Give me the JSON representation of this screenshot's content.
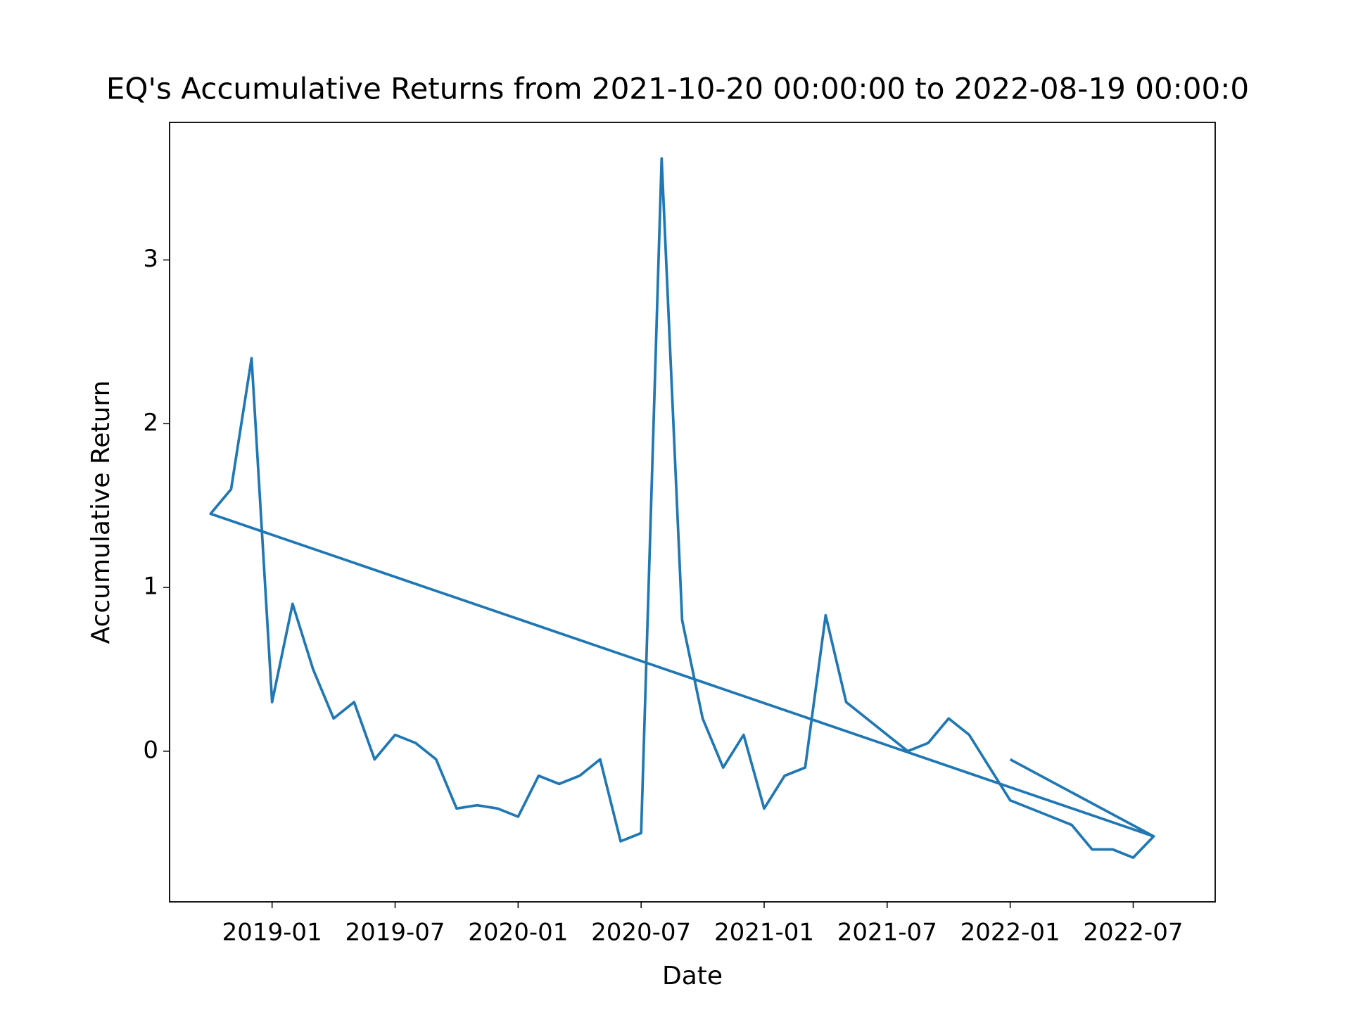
{
  "chart_data": {
    "type": "line",
    "title": "EQ's Accumulative Returns from 2021-10-20 00:00:00 to 2022-08-19 00:00:0",
    "x_label": "Date",
    "y_label": "Accumulative Return",
    "x": [
      "2022-01",
      "2022-08",
      "2018-10",
      "2018-11",
      "2018-12",
      "2019-01",
      "2019-02",
      "2019-03",
      "2019-04",
      "2019-05",
      "2019-06",
      "2019-07",
      "2019-08",
      "2019-09",
      "2019-10",
      "2019-11",
      "2019-12",
      "2020-01",
      "2020-02",
      "2020-03",
      "2020-04",
      "2020-05",
      "2020-06",
      "2020-07",
      "2020-08",
      "2020-09",
      "2020-10",
      "2020-11",
      "2020-12",
      "2021-01",
      "2021-02",
      "2021-03",
      "2021-04",
      "2021-05",
      "2021-06",
      "2021-07",
      "2021-08",
      "2021-09",
      "2021-10",
      "2021-11",
      "2021-12",
      "2022-01",
      "2022-02",
      "2022-03",
      "2022-04",
      "2022-05",
      "2022-06",
      "2022-07",
      "2022-08"
    ],
    "series": [
      {
        "color": "#1f77b4",
        "values": [
          -0.05,
          -0.52,
          1.45,
          1.6,
          2.4,
          0.3,
          0.9,
          0.5,
          0.2,
          0.3,
          -0.05,
          0.1,
          0.05,
          -0.05,
          -0.35,
          -0.33,
          -0.35,
          -0.4,
          -0.15,
          -0.2,
          -0.15,
          -0.05,
          -0.55,
          -0.5,
          3.62,
          0.8,
          0.2,
          -0.1,
          0.1,
          -0.35,
          -0.15,
          -0.1,
          0.83,
          0.3,
          0.2,
          0.1,
          0.0,
          0.05,
          0.2,
          0.1,
          -0.1,
          -0.3,
          -0.35,
          -0.4,
          -0.45,
          -0.6,
          -0.6,
          -0.65,
          -0.52
        ]
      }
    ],
    "xlim": [
      "2018-08",
      "2022-11"
    ],
    "xticks": [
      "2019-01",
      "2019-07",
      "2020-01",
      "2020-07",
      "2021-01",
      "2021-07",
      "2022-01",
      "2022-07"
    ],
    "ylim": [
      -0.92,
      3.84
    ],
    "yticks": [
      0,
      1,
      2,
      3
    ]
  }
}
